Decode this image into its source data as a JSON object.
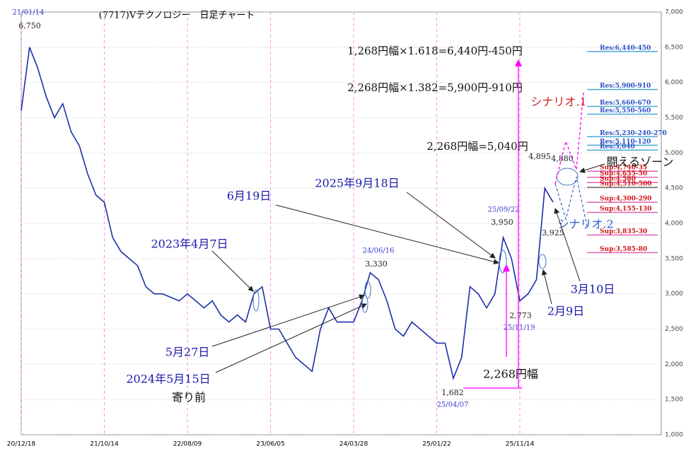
{
  "chart_data": {
    "type": "line",
    "title": "(7717)Vテクノロジー　日足チャート",
    "categories": [
      "20/12/18",
      null,
      null,
      null,
      null,
      null,
      null,
      null,
      null,
      null,
      "21/10/14",
      null,
      null,
      null,
      null,
      null,
      null,
      null,
      null,
      null,
      "22/08/09",
      null,
      null,
      null,
      null,
      null,
      null,
      null,
      null,
      null,
      "23/06/05",
      null,
      null,
      null,
      null,
      null,
      null,
      null,
      null,
      null,
      "24/03/28",
      null,
      null,
      null,
      null,
      null,
      null,
      null,
      null,
      null,
      "25/01/22",
      null,
      null,
      null,
      null,
      null,
      null,
      null,
      null,
      null,
      "25/11/14",
      null,
      null,
      null,
      null,
      null,
      null,
      null,
      null,
      null,
      null,
      null,
      null,
      null,
      null,
      null,
      null,
      null
    ],
    "series": [
      {
        "name": "7717",
        "color": "#1c2fa8",
        "values": [
          5600,
          6500,
          6200,
          5800,
          5500,
          5700,
          5300,
          5100,
          4700,
          4400,
          4300,
          3800,
          3600,
          3500,
          3400,
          3100,
          3000,
          3000,
          2950,
          2900,
          3000,
          2900,
          2800,
          2900,
          2700,
          2600,
          2700,
          2600,
          3000,
          3100,
          2500,
          2500,
          2300,
          2100,
          2000,
          1900,
          2500,
          2800,
          2600,
          2600,
          2600,
          2900,
          3300,
          3200,
          2900,
          2500,
          2400,
          2600,
          2500,
          2400,
          2300,
          2300,
          1800,
          2100,
          3100,
          3000,
          2800,
          3000,
          3800,
          3500,
          2900,
          3000,
          3200,
          4500,
          4300,
          null,
          null,
          null,
          null,
          null,
          null,
          null,
          null,
          null,
          null,
          null,
          null,
          null
        ]
      }
    ],
    "ylim": [
      1000,
      7000
    ],
    "yticks": [
      {
        "value": 1000,
        "label": "1,000"
      },
      {
        "value": 1500,
        "label": "1,500"
      },
      {
        "value": 2000,
        "label": "2,000"
      },
      {
        "value": 2500,
        "label": "2,500"
      },
      {
        "value": 3000,
        "label": "3,000"
      },
      {
        "value": 3500,
        "label": "3,500"
      },
      {
        "value": 4000,
        "label": "4,000"
      },
      {
        "value": 4500,
        "label": "4,500"
      },
      {
        "value": 5000,
        "label": "5,000"
      },
      {
        "value": 5500,
        "label": "5,500"
      },
      {
        "value": 6000,
        "label": "6,000"
      },
      {
        "value": 6500,
        "label": "6,500"
      },
      {
        "value": 7000,
        "label": "7,000"
      }
    ],
    "grid": true,
    "levels": [
      {
        "value": 6440,
        "label": "Res:6,440-450",
        "color": "#4aa8d8"
      },
      {
        "value": 5900,
        "label": "Res:5,900-910",
        "color": "#4aa8d8"
      },
      {
        "value": 5660,
        "label": "Res:5,660-670",
        "color": "#4aa8d8"
      },
      {
        "value": 5550,
        "label": "Res:5,550-560",
        "color": "#4aa8d8"
      },
      {
        "value": 5230,
        "label": "Res:5,230-240-270",
        "color": "#4aa8d8"
      },
      {
        "value": 5110,
        "label": "Res:5,110-120",
        "color": "#4aa8d8"
      },
      {
        "value": 5040,
        "label": "Res:5,040",
        "color": "#4aa8d8"
      },
      {
        "value": 4740,
        "label": "Sup:4,740-35",
        "color": "#e060b0"
      },
      {
        "value": 4655,
        "label": "Sup:4,655-50",
        "color": "#e060b0"
      },
      {
        "value": 4580,
        "label": "Sup:4,580",
        "color": "#e060b0"
      },
      {
        "value": 4510,
        "label": "Sup:4,510-500",
        "color": "#666666"
      },
      {
        "value": 4300,
        "label": "Sup:4,300-290",
        "color": "#e060b0"
      },
      {
        "value": 4155,
        "label": "Sup:4,155-130",
        "color": "#e060b0"
      },
      {
        "value": 3835,
        "label": "Sup:3,835-30",
        "color": "#e060b0"
      },
      {
        "value": 3585,
        "label": "Sup:3,585-80",
        "color": "#e060b0"
      }
    ],
    "annotations": [
      "21/01/14",
      "6,750",
      "1,268円幅×1.618=6,440円-450円",
      "2,268円幅×1.382=5,900円-910円",
      "シナリオ.1",
      "2,268円幅=5,040円",
      "4,895",
      "4,880",
      "闘えるゾーン",
      "2025年9月18日",
      "6月19日",
      "25/09/22",
      "3,950",
      "シナリオ.2",
      "3,925",
      "2023年4月7日",
      "24/06/16",
      "3,330",
      "3月10日",
      "2,773",
      "25/11/19",
      "2月9日",
      "5月27日",
      "2,268円幅",
      "2024年5月15日",
      "寄り前",
      "1,682",
      "25/04/07"
    ]
  }
}
